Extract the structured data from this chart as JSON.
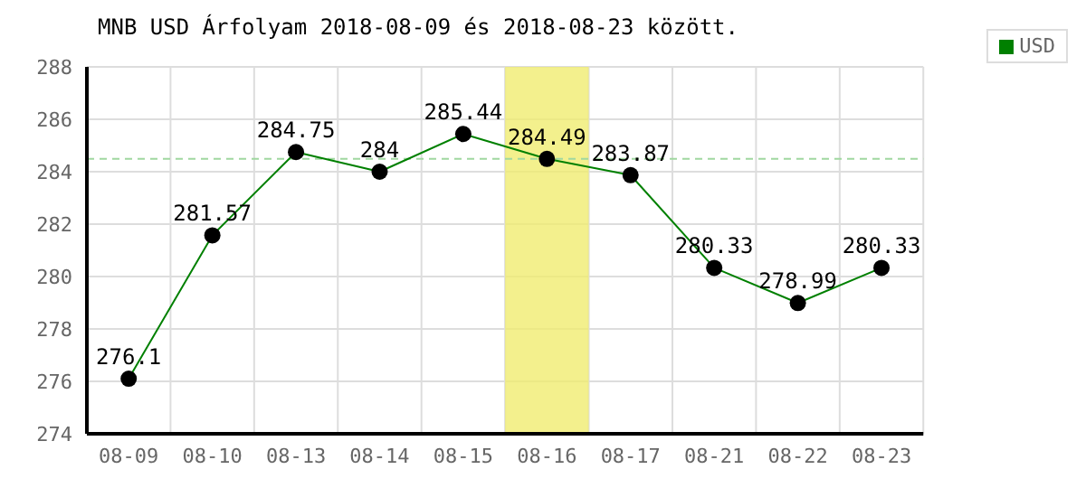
{
  "chart_data": {
    "type": "line",
    "title": "MNB USD Árfolyam 2018-08-09 és 2018-08-23 között.",
    "categories": [
      "08-09",
      "08-10",
      "08-13",
      "08-14",
      "08-15",
      "08-16",
      "08-17",
      "08-21",
      "08-22",
      "08-23"
    ],
    "series": [
      {
        "name": "USD",
        "color": "#008000",
        "values": [
          276.1,
          281.57,
          284.75,
          284,
          285.44,
          284.49,
          283.87,
          280.33,
          278.99,
          280.33
        ]
      }
    ],
    "ylim": [
      274,
      288
    ],
    "yticks": [
      274,
      276,
      278,
      280,
      282,
      284,
      286,
      288
    ],
    "grid": true,
    "legend": "top right",
    "marker": "circle",
    "line_style": "solid",
    "data_labels": true,
    "ref_lines": [
      {
        "axis": "y",
        "value": 284.49,
        "color": "#a0d8a0",
        "line_style": "dashed"
      }
    ],
    "bands": [
      {
        "axis": "x",
        "from": "08-16",
        "to": "08-16",
        "color": "#f0ec70"
      }
    ]
  }
}
